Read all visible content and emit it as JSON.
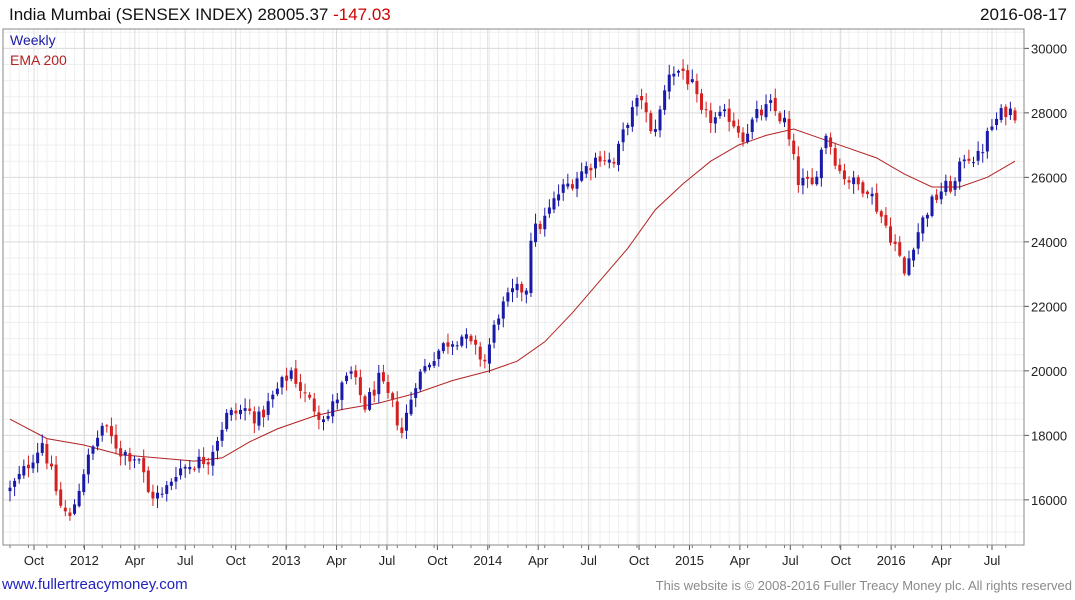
{
  "header": {
    "title": "India Mumbai (SENSEX INDEX) 28005.37",
    "change": "-147.03",
    "date": "2016-08-17"
  },
  "legend": {
    "series1": "Weekly",
    "series2": "EMA 200"
  },
  "footer": {
    "left": "www.fullertreacymoney.com",
    "right": "This website is © 2008-2016 Fuller Treacy Money plc. All rights reserved"
  },
  "colors": {
    "up": "#1a1aa8",
    "down": "#d42020",
    "ema": "#b22222",
    "grid": "#dcdcdc",
    "frame": "#888888"
  },
  "chart_data": {
    "type": "candlestick",
    "y_axis": {
      "ticks": [
        16000,
        18000,
        20000,
        22000,
        24000,
        26000,
        28000,
        30000
      ],
      "range": [
        14600,
        30600
      ],
      "position": "right"
    },
    "x_axis": {
      "tick_labels": [
        "Oct",
        "2012",
        "Apr",
        "Jul",
        "Oct",
        "2013",
        "Apr",
        "Jul",
        "Oct",
        "2014",
        "Apr",
        "Jul",
        "Oct",
        "2015",
        "Apr",
        "Jul",
        "Oct",
        "2016",
        "Apr",
        "Jul"
      ]
    },
    "grid": true,
    "series": [
      {
        "name": "Weekly",
        "kind": "ohlc_weekly",
        "approx_close_path": [
          {
            "t": 0,
            "v": 16300
          },
          {
            "t": 3,
            "v": 16900
          },
          {
            "t": 7,
            "v": 17800
          },
          {
            "t": 11,
            "v": 15800
          },
          {
            "t": 13,
            "v": 15400
          },
          {
            "t": 16,
            "v": 16900
          },
          {
            "t": 20,
            "v": 18300
          },
          {
            "t": 24,
            "v": 17500
          },
          {
            "t": 28,
            "v": 17300
          },
          {
            "t": 30,
            "v": 16200
          },
          {
            "t": 33,
            "v": 16100
          },
          {
            "t": 36,
            "v": 16900
          },
          {
            "t": 39,
            "v": 17100
          },
          {
            "t": 43,
            "v": 17300
          },
          {
            "t": 47,
            "v": 18600
          },
          {
            "t": 51,
            "v": 18800
          },
          {
            "t": 54,
            "v": 18500
          },
          {
            "t": 58,
            "v": 19400
          },
          {
            "t": 61,
            "v": 20000
          },
          {
            "t": 64,
            "v": 19200
          },
          {
            "t": 67,
            "v": 18700
          },
          {
            "t": 69,
            "v": 18600
          },
          {
            "t": 72,
            "v": 19500
          },
          {
            "t": 74,
            "v": 19900
          },
          {
            "t": 77,
            "v": 18900
          },
          {
            "t": 80,
            "v": 19700
          },
          {
            "t": 83,
            "v": 18900
          },
          {
            "t": 85,
            "v": 18100
          },
          {
            "t": 88,
            "v": 19700
          },
          {
            "t": 92,
            "v": 20500
          },
          {
            "t": 95,
            "v": 20900
          },
          {
            "t": 98,
            "v": 21100
          },
          {
            "t": 101,
            "v": 20600
          },
          {
            "t": 103,
            "v": 20300
          },
          {
            "t": 106,
            "v": 21800
          },
          {
            "t": 109,
            "v": 22400
          },
          {
            "t": 112,
            "v": 22600
          },
          {
            "t": 113,
            "v": 24200
          },
          {
            "t": 116,
            "v": 24700
          },
          {
            "t": 119,
            "v": 25500
          },
          {
            "t": 122,
            "v": 25900
          },
          {
            "t": 125,
            "v": 26300
          },
          {
            "t": 128,
            "v": 26700
          },
          {
            "t": 131,
            "v": 26400
          },
          {
            "t": 134,
            "v": 27800
          },
          {
            "t": 137,
            "v": 28500
          },
          {
            "t": 139,
            "v": 27300
          },
          {
            "t": 141,
            "v": 28000
          },
          {
            "t": 143,
            "v": 29300
          },
          {
            "t": 146,
            "v": 29300
          },
          {
            "t": 148,
            "v": 28800
          },
          {
            "t": 150,
            "v": 27900
          },
          {
            "t": 153,
            "v": 27800
          },
          {
            "t": 156,
            "v": 27900
          },
          {
            "t": 159,
            "v": 27300
          },
          {
            "t": 162,
            "v": 27900
          },
          {
            "t": 165,
            "v": 28200
          },
          {
            "t": 168,
            "v": 27700
          },
          {
            "t": 171,
            "v": 25900
          },
          {
            "t": 174,
            "v": 25700
          },
          {
            "t": 177,
            "v": 27400
          },
          {
            "t": 180,
            "v": 26200
          },
          {
            "t": 183,
            "v": 25800
          },
          {
            "t": 186,
            "v": 25700
          },
          {
            "t": 189,
            "v": 24800
          },
          {
            "t": 192,
            "v": 23900
          },
          {
            "t": 194,
            "v": 23000
          },
          {
            "t": 196,
            "v": 24000
          },
          {
            "t": 199,
            "v": 25000
          },
          {
            "t": 202,
            "v": 25600
          },
          {
            "t": 205,
            "v": 25800
          },
          {
            "t": 207,
            "v": 26700
          },
          {
            "t": 210,
            "v": 26600
          },
          {
            "t": 213,
            "v": 27600
          },
          {
            "t": 216,
            "v": 28100
          },
          {
            "t": 218,
            "v": 28005
          }
        ]
      },
      {
        "name": "EMA 200",
        "kind": "line",
        "points": [
          {
            "t": 0,
            "v": 18500
          },
          {
            "t": 8,
            "v": 17900
          },
          {
            "t": 16,
            "v": 17700
          },
          {
            "t": 24,
            "v": 17400
          },
          {
            "t": 32,
            "v": 17300
          },
          {
            "t": 40,
            "v": 17200
          },
          {
            "t": 46,
            "v": 17300
          },
          {
            "t": 52,
            "v": 17800
          },
          {
            "t": 58,
            "v": 18200
          },
          {
            "t": 66,
            "v": 18600
          },
          {
            "t": 72,
            "v": 18800
          },
          {
            "t": 80,
            "v": 19000
          },
          {
            "t": 88,
            "v": 19300
          },
          {
            "t": 96,
            "v": 19700
          },
          {
            "t": 104,
            "v": 20000
          },
          {
            "t": 110,
            "v": 20300
          },
          {
            "t": 116,
            "v": 20900
          },
          {
            "t": 122,
            "v": 21800
          },
          {
            "t": 128,
            "v": 22800
          },
          {
            "t": 134,
            "v": 23800
          },
          {
            "t": 140,
            "v": 25000
          },
          {
            "t": 146,
            "v": 25800
          },
          {
            "t": 152,
            "v": 26500
          },
          {
            "t": 158,
            "v": 27000
          },
          {
            "t": 164,
            "v": 27300
          },
          {
            "t": 170,
            "v": 27500
          },
          {
            "t": 176,
            "v": 27200
          },
          {
            "t": 182,
            "v": 26900
          },
          {
            "t": 188,
            "v": 26600
          },
          {
            "t": 194,
            "v": 26100
          },
          {
            "t": 200,
            "v": 25700
          },
          {
            "t": 206,
            "v": 25700
          },
          {
            "t": 212,
            "v": 26000
          },
          {
            "t": 218,
            "v": 26500
          }
        ]
      }
    ]
  }
}
